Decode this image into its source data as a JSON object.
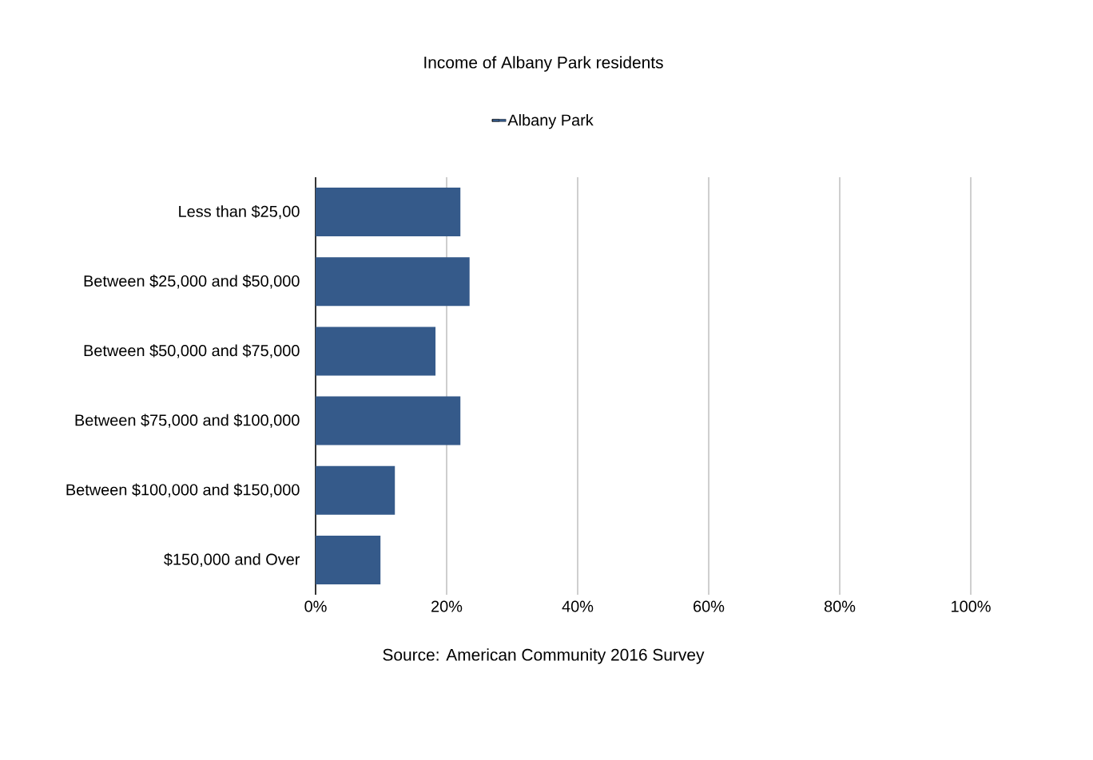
{
  "chart_data": {
    "type": "bar",
    "orientation": "horizontal",
    "title": "Income of Albany Park residents",
    "categories": [
      "Less than $25,00",
      "Between $25,000 and $50,000",
      "Between $50,000 and $75,000",
      "Between $75,000 and $100,000",
      "Between $100,000 and $150,000",
      "$150,000 and Over"
    ],
    "series": [
      {
        "name": "Albany Park",
        "color": "#355a8a",
        "values": [
          22.1,
          23.5,
          18.3,
          22.1,
          12.1,
          9.9
        ]
      }
    ],
    "xlim": [
      0,
      100
    ],
    "xticks": [
      {
        "value": 0,
        "label": "0%"
      },
      {
        "value": 20,
        "label": "20%"
      },
      {
        "value": 40,
        "label": "40%"
      },
      {
        "value": 60,
        "label": "60%"
      },
      {
        "value": 80,
        "label": "80%"
      },
      {
        "value": 100,
        "label": "100%"
      }
    ],
    "grid": "x",
    "legend": "top",
    "annotations": [
      "Source: American Community 2016 Survey"
    ]
  }
}
